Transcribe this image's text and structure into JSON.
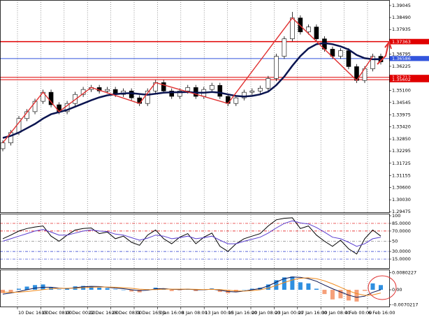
{
  "chart_data": [
    {
      "type": "candlestick",
      "ylim": [
        1.2945,
        1.3927
      ],
      "yticks": [
        {
          "value": 1.39045,
          "label": "1.39045"
        },
        {
          "value": 1.3849,
          "label": "1.38490"
        },
        {
          "value": 1.37935,
          "label": "1.37935"
        },
        {
          "value": 1.36795,
          "label": "1.36795"
        },
        {
          "value": 1.36225,
          "label": "1.36225"
        },
        {
          "value": 1.351,
          "label": "1.35100"
        },
        {
          "value": 1.34545,
          "label": "1.34545"
        },
        {
          "value": 1.33975,
          "label": "1.33975"
        },
        {
          "value": 1.3342,
          "label": "1.33420"
        },
        {
          "value": 1.3285,
          "label": "1.32850"
        },
        {
          "value": 1.32295,
          "label": "1.32295"
        },
        {
          "value": 1.31725,
          "label": "1.31725"
        },
        {
          "value": 1.31155,
          "label": "1.31155"
        },
        {
          "value": 1.306,
          "label": "1.30600"
        },
        {
          "value": 1.3003,
          "label": "1.30030"
        },
        {
          "value": 1.29475,
          "label": "1.29475"
        }
      ],
      "levels": [
        {
          "value": 1.3738,
          "label": "1.37380",
          "color": "#e00000"
        },
        {
          "value": 1.37363,
          "label": "1.37363",
          "color": "#e00000"
        },
        {
          "value": 1.36586,
          "label": "1.36586",
          "color": "#3355dd"
        },
        {
          "value": 1.35712,
          "label": "1.35712",
          "color": "#e00000"
        },
        {
          "value": 1.35602,
          "label": "1.35602",
          "color": "#e00000"
        }
      ],
      "up_color": "#ffffff",
      "down_color": "#000000",
      "zigzag_color": "#e03030",
      "open": [
        1.324,
        1.3267,
        1.3315,
        1.338,
        1.3412,
        1.346,
        1.3502,
        1.3444,
        1.3412,
        1.345,
        1.3492,
        1.3515,
        1.3524,
        1.3508,
        1.3515,
        1.3492,
        1.3508,
        1.3476,
        1.345,
        1.3508,
        1.3547,
        1.3508,
        1.3483,
        1.3508,
        1.3524,
        1.3483,
        1.3515,
        1.3534,
        1.3483,
        1.345,
        1.3476,
        1.3502,
        1.3508,
        1.3521,
        1.3566,
        1.3669,
        1.375,
        1.3847,
        1.3782,
        1.3805,
        1.375,
        1.3702,
        1.3669,
        1.3695,
        1.3621,
        1.3557,
        1.3611,
        1.3669
      ],
      "high": [
        1.3279,
        1.3327,
        1.3392,
        1.3424,
        1.3472,
        1.3514,
        1.3514,
        1.3456,
        1.3462,
        1.3504,
        1.3527,
        1.3536,
        1.3536,
        1.3527,
        1.3527,
        1.352,
        1.352,
        1.3488,
        1.352,
        1.3559,
        1.3559,
        1.352,
        1.352,
        1.3536,
        1.3536,
        1.3527,
        1.3546,
        1.3546,
        1.3495,
        1.3488,
        1.3514,
        1.352,
        1.3533,
        1.3578,
        1.3681,
        1.3762,
        1.3875,
        1.3859,
        1.3817,
        1.3817,
        1.3762,
        1.3714,
        1.3707,
        1.3707,
        1.3633,
        1.3623,
        1.3681,
        1.3681
      ],
      "low": [
        1.3228,
        1.3255,
        1.3303,
        1.3368,
        1.34,
        1.3448,
        1.3432,
        1.34,
        1.34,
        1.3438,
        1.348,
        1.3503,
        1.3496,
        1.3496,
        1.348,
        1.348,
        1.3464,
        1.3438,
        1.3438,
        1.3496,
        1.3496,
        1.3471,
        1.3471,
        1.3496,
        1.3471,
        1.3471,
        1.3503,
        1.3471,
        1.3438,
        1.3438,
        1.3464,
        1.349,
        1.3496,
        1.3509,
        1.3554,
        1.3657,
        1.3738,
        1.377,
        1.377,
        1.3738,
        1.369,
        1.3657,
        1.3657,
        1.3609,
        1.3545,
        1.3545,
        1.3599,
        1.3631
      ],
      "close": [
        1.3267,
        1.3315,
        1.338,
        1.3412,
        1.346,
        1.3502,
        1.3444,
        1.3412,
        1.345,
        1.3492,
        1.3515,
        1.3524,
        1.3508,
        1.3515,
        1.3492,
        1.3508,
        1.3476,
        1.345,
        1.3508,
        1.3547,
        1.3508,
        1.3483,
        1.3508,
        1.3524,
        1.3483,
        1.3515,
        1.3534,
        1.3483,
        1.345,
        1.3476,
        1.3502,
        1.3508,
        1.3521,
        1.3566,
        1.3669,
        1.375,
        1.3847,
        1.3782,
        1.3805,
        1.375,
        1.3702,
        1.3669,
        1.3695,
        1.3621,
        1.3557,
        1.3611,
        1.3669,
        1.3643
      ],
      "series": [
        {
          "color": "#0a1450",
          "values": [
            1.329,
            1.33,
            1.3315,
            1.3335,
            1.3355,
            1.338,
            1.34,
            1.341,
            1.342,
            1.3435,
            1.345,
            1.3465,
            1.3478,
            1.3488,
            1.3493,
            1.3497,
            1.3498,
            1.3494,
            1.349,
            1.3495,
            1.35,
            1.3502,
            1.3502,
            1.3503,
            1.35,
            1.35,
            1.3503,
            1.35,
            1.3492,
            1.3485,
            1.3482,
            1.3485,
            1.3492,
            1.3505,
            1.3535,
            1.3575,
            1.3625,
            1.367,
            1.3705,
            1.3725,
            1.373,
            1.3725,
            1.3715,
            1.37,
            1.3675,
            1.366,
            1.3655,
            1.3655
          ]
        }
      ]
    },
    {
      "type": "line",
      "ylim": [
        0,
        100
      ],
      "yticks": [
        100,
        {
          "value": 85,
          "label": "85.0000"
        },
        {
          "value": 70,
          "label": "70.0000"
        },
        50,
        {
          "value": 30,
          "label": "30.0000"
        },
        {
          "value": 15,
          "label": "15.0000"
        }
      ],
      "ytick_colors": [
        null,
        "#e00000",
        "#e00000",
        "#888888",
        "#2233cc",
        "#2233cc"
      ],
      "series": [
        {
          "color": "#000000",
          "values": [
            55,
            62,
            70,
            75,
            78,
            80,
            60,
            50,
            62,
            72,
            75,
            76,
            65,
            68,
            55,
            60,
            48,
            42,
            62,
            72,
            55,
            45,
            58,
            65,
            45,
            58,
            66,
            40,
            30,
            45,
            55,
            60,
            65,
            80,
            92,
            95,
            96,
            75,
            80,
            62,
            50,
            40,
            52,
            35,
            25,
            55,
            72,
            60
          ]
        },
        {
          "color": "#5a3fd0",
          "values": [
            50,
            55,
            60,
            65,
            70,
            73,
            68,
            62,
            62,
            66,
            70,
            72,
            70,
            69,
            64,
            62,
            57,
            52,
            56,
            62,
            60,
            55,
            57,
            60,
            55,
            57,
            60,
            52,
            45,
            45,
            50,
            54,
            58,
            66,
            76,
            85,
            90,
            86,
            84,
            77,
            68,
            58,
            55,
            48,
            40,
            45,
            55,
            58
          ]
        }
      ]
    },
    {
      "type": "macd",
      "ylim": [
        -0.0075,
        0.0085
      ],
      "yticks": [
        0.0080227,
        {
          "value": 0,
          "label": "0.00"
        },
        -0.0070217
      ],
      "up_color": "#2f8fe0",
      "down_color": "#f5a07a",
      "values": [
        -0.0015,
        -0.001,
        0.0005,
        0.0015,
        0.0022,
        0.0025,
        0.0012,
        0.0002,
        0.0008,
        0.0016,
        0.0018,
        0.0015,
        0.001,
        0.0008,
        0.0002,
        0.0,
        -0.0008,
        -0.0012,
        0.0002,
        0.001,
        0.0004,
        -0.0006,
        -0.0002,
        0.0004,
        -0.0006,
        0.0,
        0.0006,
        -0.001,
        -0.0016,
        -0.001,
        0.0,
        0.0005,
        0.001,
        0.0025,
        0.0045,
        0.0058,
        0.0062,
        0.0035,
        0.003,
        0.0005,
        -0.002,
        -0.0045,
        -0.004,
        -0.005,
        -0.0055,
        -0.0005,
        0.003,
        0.0022
      ],
      "series": [
        {
          "color": "#0a1450",
          "values": [
            -0.002,
            -0.0015,
            -0.0008,
            0.0,
            0.0008,
            0.0012,
            0.0012,
            0.0008,
            0.0006,
            0.001,
            0.0014,
            0.0016,
            0.0015,
            0.0012,
            0.0008,
            0.0005,
            0.0,
            -0.0004,
            -0.0002,
            0.0004,
            0.0006,
            0.0002,
            0.0001,
            0.0003,
            0.0,
            0.0,
            0.0003,
            -0.0002,
            -0.0008,
            -0.001,
            -0.0006,
            0.0,
            0.0006,
            0.0018,
            0.0036,
            0.0052,
            0.006,
            0.0058,
            0.0052,
            0.004,
            0.0022,
            0.0005,
            -0.001,
            -0.0025,
            -0.0035,
            -0.003,
            -0.0012,
            0.0
          ]
        },
        {
          "color": "#f08a1c",
          "values": [
            -0.001,
            -0.0012,
            -0.0011,
            -0.0008,
            -0.0004,
            0.0001,
            0.0005,
            0.0007,
            0.0007,
            0.0008,
            0.001,
            0.0012,
            0.0013,
            0.0013,
            0.0012,
            0.001,
            0.0007,
            0.0003,
            0.0001,
            0.0001,
            0.0003,
            0.0003,
            0.0003,
            0.0003,
            0.0002,
            0.0001,
            0.0002,
            0.0001,
            -0.0002,
            -0.0005,
            -0.0006,
            -0.0004,
            0.0,
            0.0008,
            0.002,
            0.0034,
            0.0046,
            0.0054,
            0.0056,
            0.0052,
            0.0042,
            0.0028,
            0.0012,
            -0.0005,
            -0.0018,
            -0.0026,
            -0.0024,
            -0.0015
          ]
        }
      ]
    }
  ],
  "time_axis": {
    "labels": [
      "10 Dec 16:00",
      "15 Dec 08:00",
      "18 Dec 00:00",
      "22 Dec 16:00",
      "26 Dec 08:00",
      "31 Dec 16:00",
      "5 Jan 16:00",
      "8 Jan 08:00",
      "13 Jan 00:00",
      "15 Jan 16:00",
      "20 Jan 08:00",
      "23 Jan 00:00",
      "27 Jan 16:00",
      "30 Jan 08:00",
      "4 Feb 00:00",
      "6 Feb 16:00"
    ]
  }
}
